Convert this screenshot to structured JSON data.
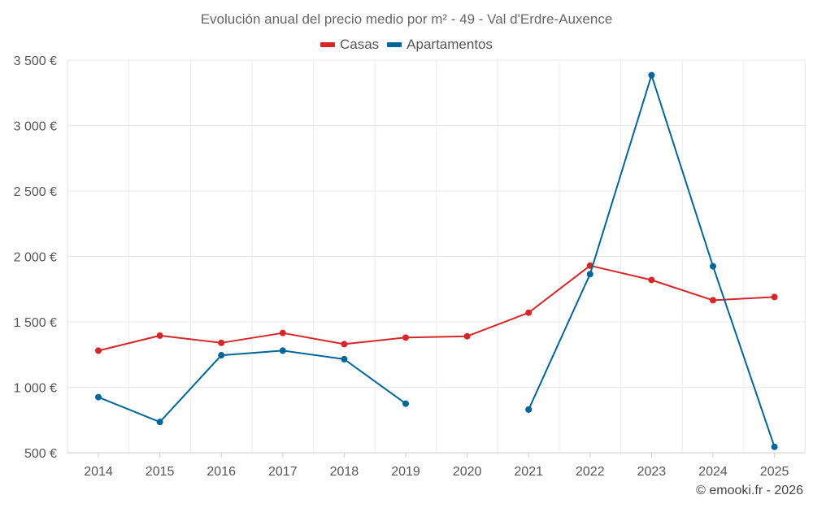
{
  "chart_data": {
    "type": "line",
    "title": "Evolución anual del precio medio por m² - 49 - Val d'Erdre-Auxence",
    "x": [
      "2014",
      "2015",
      "2016",
      "2017",
      "2018",
      "2019",
      "2020",
      "2021",
      "2022",
      "2023",
      "2024",
      "2025"
    ],
    "ylim": [
      500,
      3500
    ],
    "y_ticks": [
      500,
      1000,
      1500,
      2000,
      2500,
      3000,
      3500
    ],
    "y_tick_labels": [
      "500 €",
      "1 000 €",
      "1 500 €",
      "2 000 €",
      "2 500 €",
      "3 000 €",
      "3 500 €"
    ],
    "xlabel": "",
    "ylabel": "",
    "legend_position": "top",
    "grid": true,
    "series": [
      {
        "name": "Casas",
        "color": "#d62728",
        "values": [
          1280,
          1395,
          1340,
          1415,
          1330,
          1380,
          1390,
          1570,
          1930,
          1820,
          1665,
          1690
        ]
      },
      {
        "name": "Apartamentos",
        "color": "#00669a",
        "values": [
          925,
          735,
          1245,
          1280,
          1215,
          875,
          null,
          830,
          1865,
          3385,
          1925,
          545
        ]
      }
    ]
  },
  "credit": "© emooki.fr - 2026"
}
